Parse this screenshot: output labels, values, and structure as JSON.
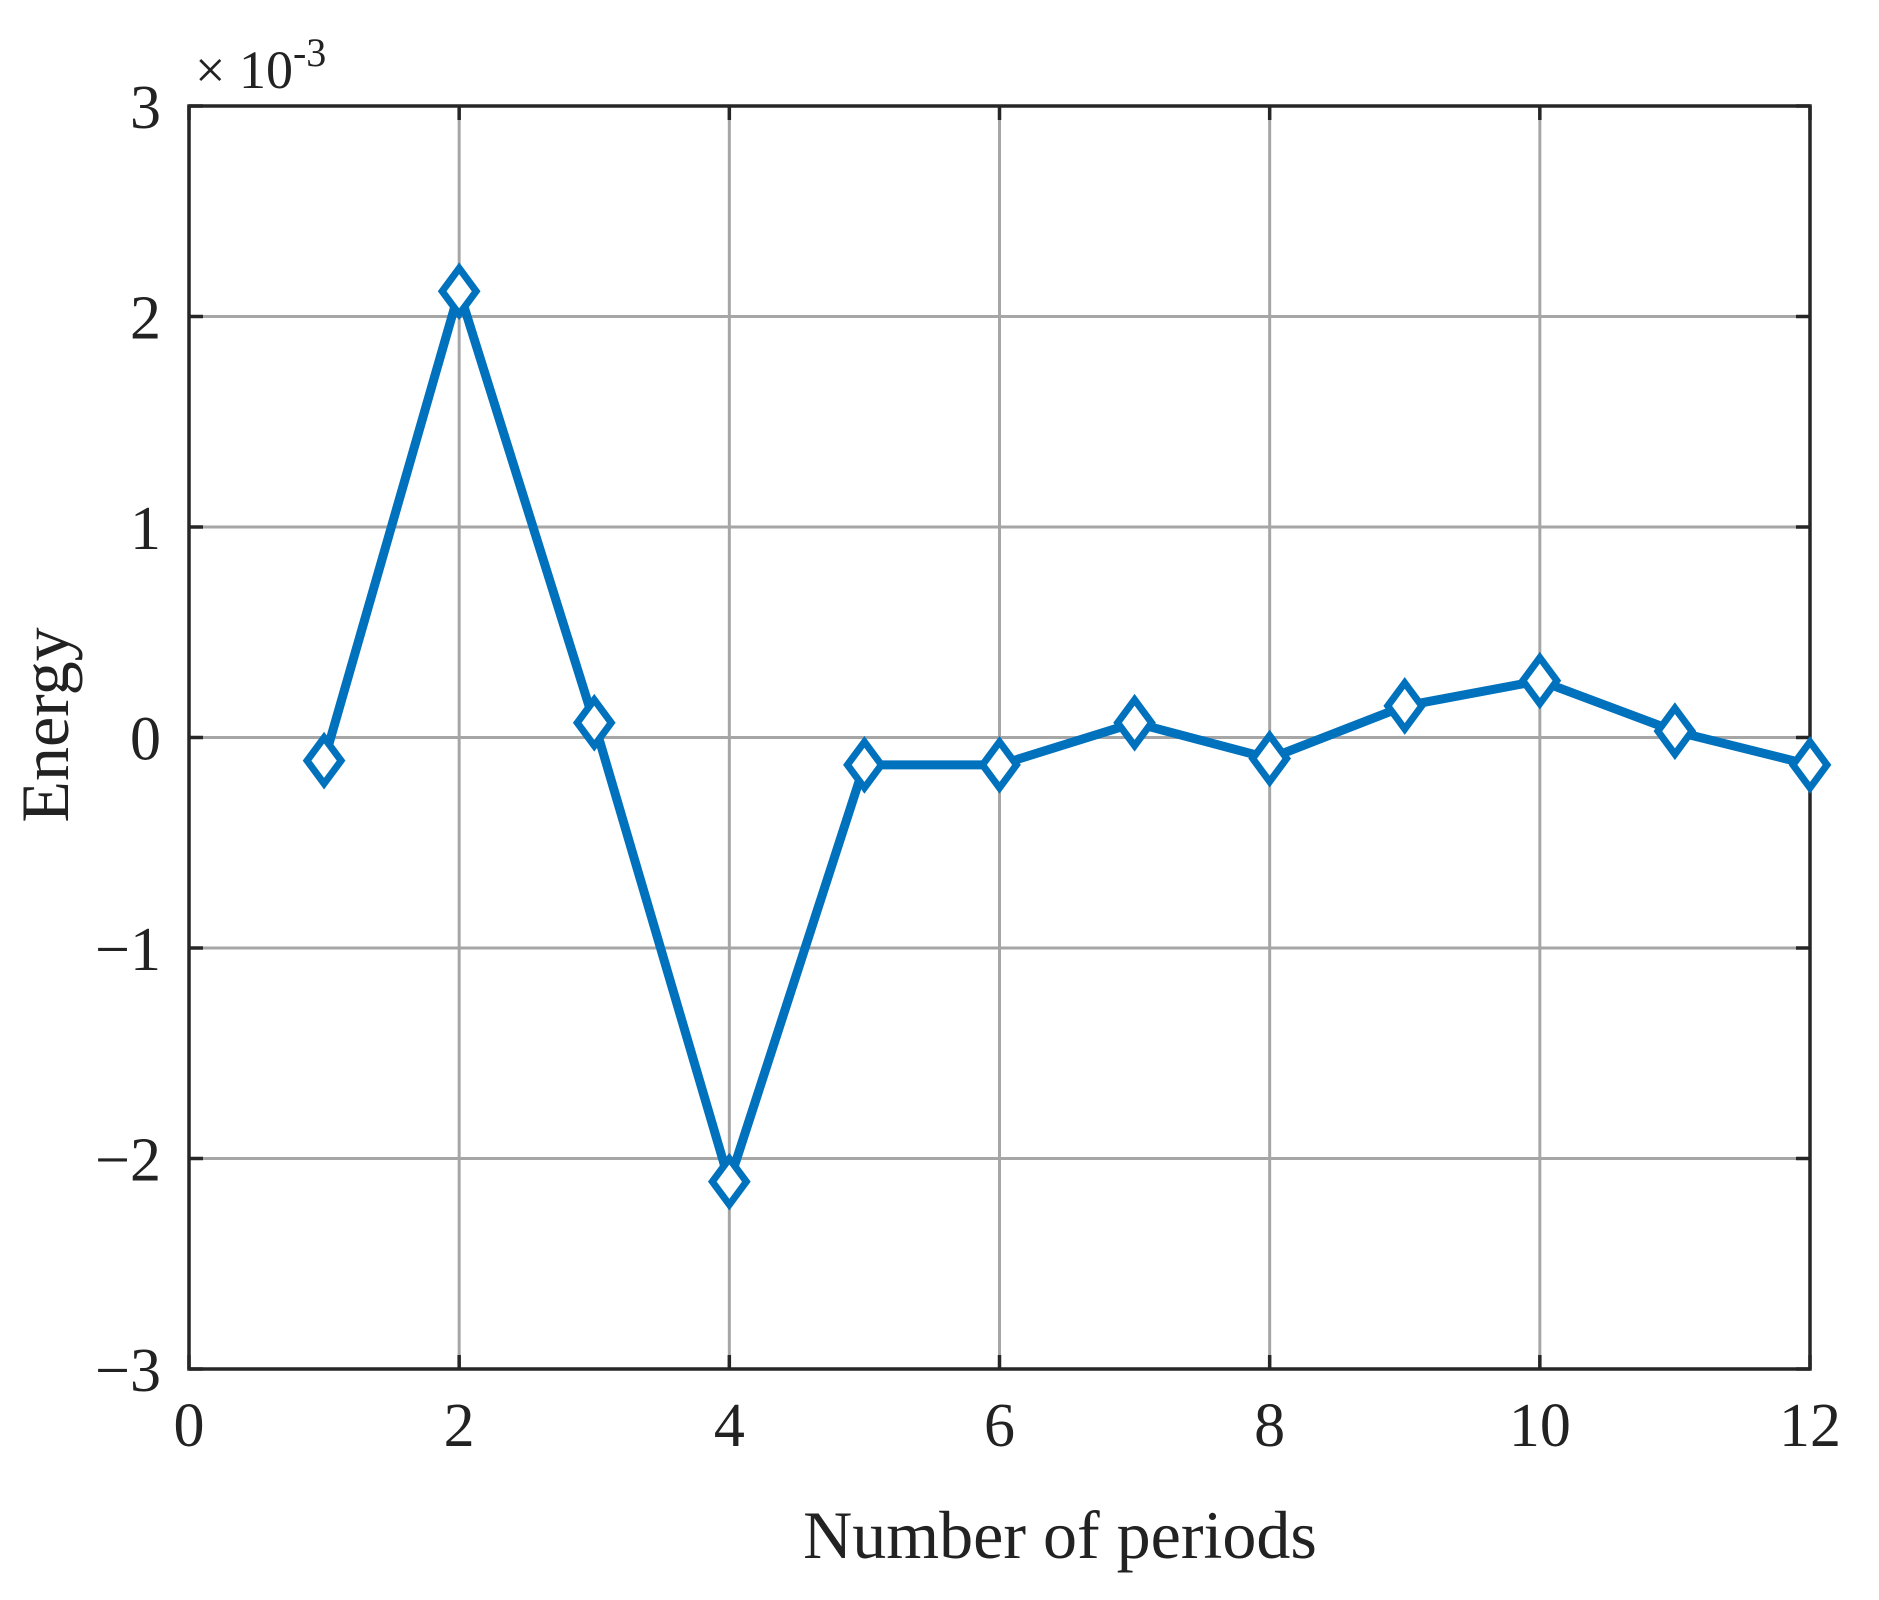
{
  "chart_data": {
    "type": "line",
    "xlabel": "Number of periods",
    "ylabel": "Energy",
    "y_exponent_label": "× 10",
    "y_exponent_power": "-3",
    "xlim": [
      0,
      12
    ],
    "ylim": [
      -3,
      3
    ],
    "x_ticks": [
      0,
      2,
      4,
      6,
      8,
      10,
      12
    ],
    "y_ticks": [
      -3,
      -2,
      -1,
      0,
      1,
      2,
      3
    ],
    "x_tick_labels": [
      "0",
      "2",
      "4",
      "6",
      "8",
      "10",
      "12"
    ],
    "y_tick_labels": [
      "−3",
      "−2",
      "−1",
      "0",
      "1",
      "2",
      "3"
    ],
    "grid": true,
    "marker": "diamond",
    "series": [
      {
        "x": [
          1,
          2,
          3,
          4,
          5,
          6,
          7,
          8,
          9,
          10,
          11,
          12
        ],
        "y": [
          -0.11,
          2.12,
          0.07,
          -2.11,
          -0.13,
          -0.13,
          0.07,
          -0.1,
          0.15,
          0.27,
          0.03,
          -0.13
        ],
        "color": "#0072BD"
      }
    ]
  }
}
